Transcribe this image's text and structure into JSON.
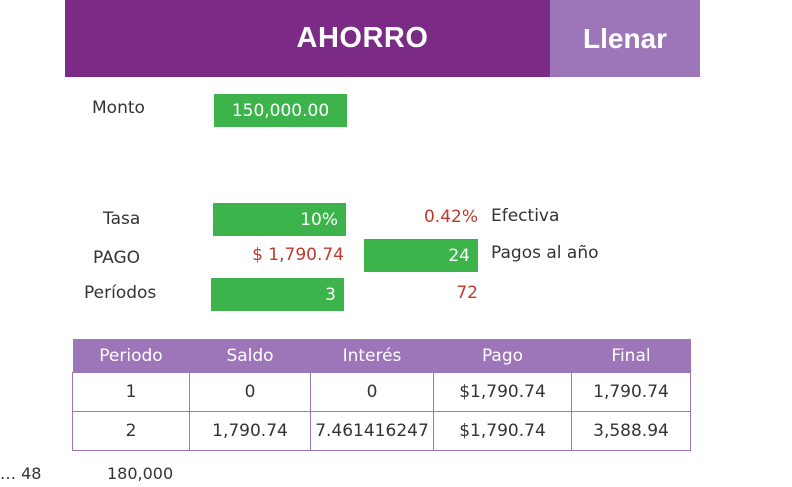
{
  "header": {
    "title": "AHORRO",
    "fill_button": "Llenar"
  },
  "monto": {
    "label": "Monto",
    "value": "150,000.00"
  },
  "tasa": {
    "label": "Tasa",
    "value": "10%",
    "effective_value": "0.42%",
    "effective_label": "Efectiva"
  },
  "pago": {
    "label": "PAGO",
    "value": "$ 1,790.74",
    "payments_per_year": "24",
    "payments_label": "Pagos al año"
  },
  "periodos": {
    "label": "Períodos",
    "value": "3",
    "total": "72"
  },
  "table": {
    "headers": [
      "Periodo",
      "Saldo",
      "Interés",
      "Pago",
      "Final"
    ],
    "rows": [
      [
        "1",
        "0",
        "0",
        "$1,790.74",
        "1,790.74"
      ],
      [
        "2",
        "1,790.74",
        "7.461416247",
        "$1,790.74",
        "3,588.94"
      ]
    ]
  },
  "footer": {
    "periods_text": "… 48",
    "amount_text": "180,000"
  },
  "colors": {
    "purple_dark": "#7b2a86",
    "purple_light": "#9c76b8",
    "green": "#3cb44b",
    "red": "#c0392b"
  }
}
